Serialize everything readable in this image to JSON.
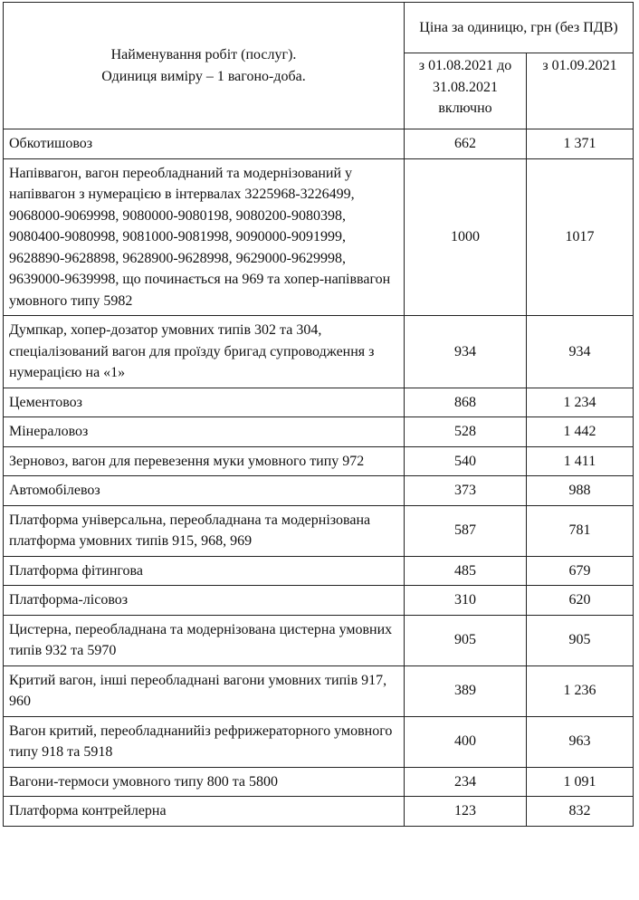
{
  "header": {
    "name_col": [
      "Найменування робіт (послуг).",
      "Одиниця виміру – 1 вагоно-доба."
    ],
    "price_col": "Ціна за одиницю, грн (без ПДВ)",
    "period1": "з 01.08.2021 до 31.08.2021 включно",
    "period2": "з 01.09.2021"
  },
  "rows": [
    {
      "name": "Обкотишовоз",
      "p1": "662",
      "p2": "1 371"
    },
    {
      "name": "Напіввагон, вагон переобладнаний та модернізований у напіввагон з нумерацією в інтервалах 3225968-3226499, 9068000-9069998, 9080000-9080198, 9080200-9080398, 9080400-9080998, 9081000-9081998, 9090000-9091999, 9628890-9628898, 9628900-9628998, 9629000-9629998, 9639000-9639998, що починається на 969 та хопер-напіввагон умовного типу 5982",
      "p1": "1000",
      "p2": "1017"
    },
    {
      "name": "Думпкар, хопер-дозатор умовних типів 302 та 304, спеціалізований вагон для проїзду бригад супроводження з нумерацією на «1»",
      "p1": "934",
      "p2": "934"
    },
    {
      "name": "Цементовоз",
      "p1": "868",
      "p2": "1 234"
    },
    {
      "name": "Мінераловоз",
      "p1": "528",
      "p2": "1 442"
    },
    {
      "name": "Зерновоз, вагон для перевезення муки умовного типу 972",
      "p1": "540",
      "p2": "1 411"
    },
    {
      "name": "Автомобілевоз",
      "p1": "373",
      "p2": "988"
    },
    {
      "name": "Платформа універсальна, переобладнана та модернізована платформа умовних типів 915, 968, 969",
      "p1": "587",
      "p2": "781"
    },
    {
      "name": "Платформа фітингова",
      "p1": "485",
      "p2": "679"
    },
    {
      "name": "Платформа-лісовоз",
      "p1": "310",
      "p2": "620"
    },
    {
      "name": "Цистерна, переобладнана та модернізована цистерна умовних типів 932 та 5970",
      "p1": "905",
      "p2": "905"
    },
    {
      "name": "Критий вагон, інші переобладнані вагони умовних типів 917, 960",
      "p1": "389",
      "p2": "1 236"
    },
    {
      "name": "Вагон критий, переобладнанийіз рефрижераторного умовного типу 918 та 5918",
      "p1": "400",
      "p2": "963"
    },
    {
      "name": "Вагони-термоси умовного типу 800 та 5800",
      "p1": "234",
      "p2": "1 091"
    },
    {
      "name": "Платформа контрейлерна",
      "p1": "123",
      "p2": "832"
    }
  ]
}
